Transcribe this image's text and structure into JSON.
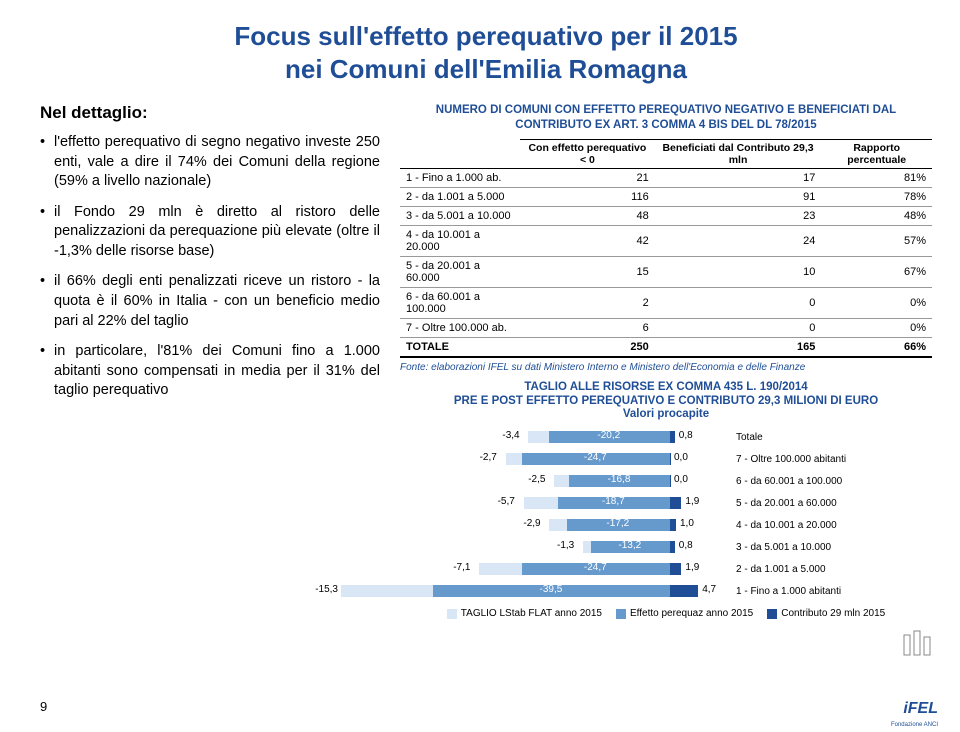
{
  "title_l1": "Focus sull'effetto perequativo per il 2015",
  "title_l2": "nei Comuni dell'Emilia Romagna",
  "subhead": "Nel dettaglio:",
  "bullets": [
    "l'effetto perequativo di segno negativo investe 250 enti, vale a dire il 74% dei Comuni della regione (59% a livello nazionale)",
    "il Fondo 29 mln è diretto al ristoro delle penalizzazioni da perequazione più elevate (oltre il -1,3% delle risorse base)",
    "il 66% degli enti penalizzati riceve un ristoro - la quota è il 60% in Italia - con un beneficio medio pari al 22% del taglio",
    "in particolare, l'81% dei Comuni fino a 1.000 abitanti sono compensati in media per il 31% del taglio perequativo"
  ],
  "table_title": "NUMERO DI COMUNI CON EFFETTO PEREQUATIVO NEGATIVO E BENEFICIATI DAL CONTRIBUTO EX ART. 3 COMMA 4 BIS DEL DL 78/2015",
  "headers": [
    "",
    "Con effetto perequativo < 0",
    "Beneficiati dal Contributo 29,3 mln",
    "Rapporto percentuale"
  ],
  "rows": [
    [
      "1 - Fino a 1.000 ab.",
      "21",
      "17",
      "81%"
    ],
    [
      "2 - da 1.001 a 5.000",
      "116",
      "91",
      "78%"
    ],
    [
      "3 - da 5.001 a 10.000",
      "48",
      "23",
      "48%"
    ],
    [
      "4 - da 10.001 a 20.000",
      "42",
      "24",
      "57%"
    ],
    [
      "5 - da 20.001 a 60.000",
      "15",
      "10",
      "67%"
    ],
    [
      "6 - da 60.001 a 100.000",
      "2",
      "0",
      "0%"
    ],
    [
      "7 - Oltre 100.000 ab.",
      "6",
      "0",
      "0%"
    ]
  ],
  "total": [
    "TOTALE",
    "250",
    "165",
    "66%"
  ],
  "source": "Fonte: elaborazioni IFEL su dati Ministero Interno e Ministero dell'Economia e delle Finanze",
  "chart_title_l1": "TAGLIO ALLE RISORSE EX COMMA 435 L. 190/2014",
  "chart_title_l2": "PRE E POST EFFETTO PEREQUATIVO E CONTRIBUTO 29,3 MILIONI DI EURO",
  "chart_title_l3": "Valori procapite",
  "chart": {
    "colors": {
      "a": "#d9e6f5",
      "b": "#6699cc",
      "c": "#1f4e96"
    },
    "zero": 270,
    "scale": 6.0,
    "rows": [
      {
        "label": "Totale",
        "a": -3.4,
        "b": -20.2,
        "c": 0.8,
        "al": "-3,4",
        "bl": "-20,2",
        "cl": "0,8"
      },
      {
        "label": "7 - Oltre 100.000 abitanti",
        "a": -2.7,
        "b": -24.7,
        "c": 0.0,
        "al": "-2,7",
        "bl": "-24,7",
        "cl": "0,0"
      },
      {
        "label": "6 - da 60.001 a 100.000",
        "a": -2.5,
        "b": -16.8,
        "c": 0.0,
        "al": "-2,5",
        "bl": "-16,8",
        "cl": "0,0"
      },
      {
        "label": "5 - da 20.001 a 60.000",
        "a": -5.7,
        "b": -18.7,
        "c": 1.9,
        "al": "-5,7",
        "bl": "-18,7",
        "cl": "1,9"
      },
      {
        "label": "4 - da 10.001 a 20.000",
        "a": -2.9,
        "b": -17.2,
        "c": 1.0,
        "al": "-2,9",
        "bl": "-17,2",
        "cl": "1,0"
      },
      {
        "label": "3 - da 5.001 a 10.000",
        "a": -1.3,
        "b": -13.2,
        "c": 0.8,
        "al": "-1,3",
        "bl": "-13,2",
        "cl": "0,8"
      },
      {
        "label": "2 - da 1.001 a 5.000",
        "a": -7.1,
        "b": -24.7,
        "c": 1.9,
        "al": "-7,1",
        "bl": "-24,7",
        "cl": "1,9"
      },
      {
        "label": "1 - Fino a 1.000 abitanti",
        "a": -15.3,
        "b": -39.5,
        "c": 4.7,
        "al": "-15,3",
        "bl": "-39,5",
        "cl": "4,7"
      }
    ]
  },
  "legend": [
    {
      "color": "#d9e6f5",
      "label": "TAGLIO LStab FLAT anno 2015"
    },
    {
      "color": "#6699cc",
      "label": "Effetto perequaz anno 2015"
    },
    {
      "color": "#1f4e96",
      "label": "Contributo 29 mln 2015"
    }
  ],
  "pagenum": "9",
  "ifel": "iFEL",
  "ifel_sub": "Fondazione ANCI"
}
